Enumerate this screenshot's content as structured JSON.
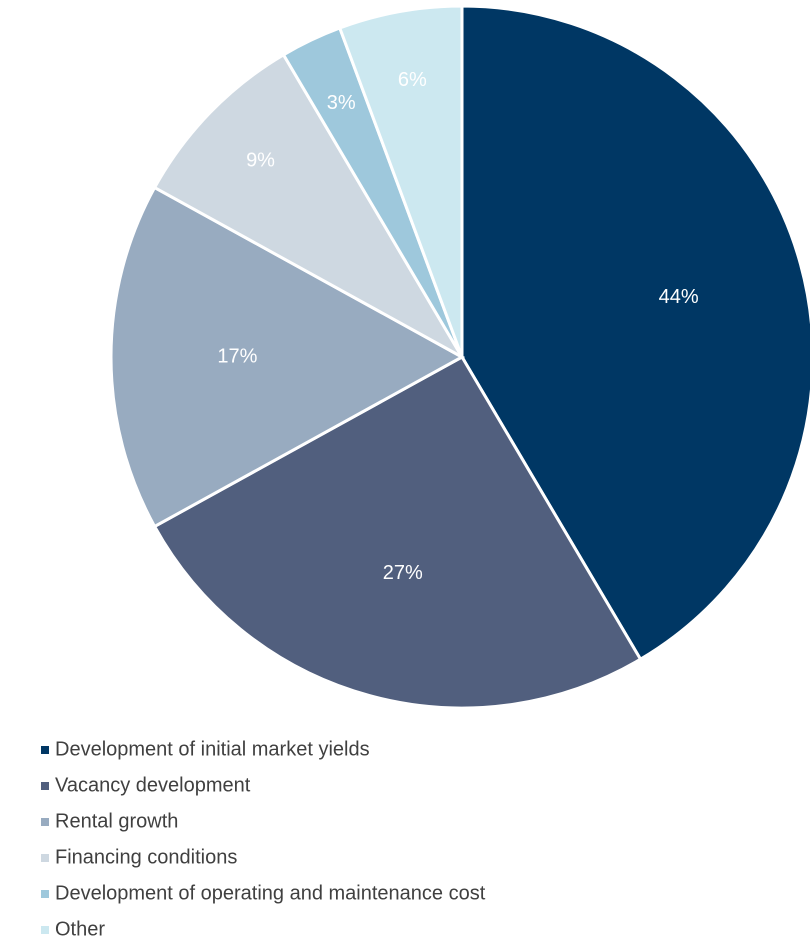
{
  "chart_data": {
    "type": "pie",
    "categories": [
      "Development of initial market yields",
      "Vacancy development",
      "Rental growth",
      "Financing conditions",
      "Development of operating and maintenance cost",
      "Other"
    ],
    "values": [
      44,
      27,
      17,
      9,
      3,
      6
    ],
    "value_labels": [
      "44%",
      "27%",
      "17%",
      "9%",
      "3%",
      "6%"
    ],
    "colors": [
      "#003764",
      "#515f7e",
      "#98abc0",
      "#ced8e1",
      "#9ec8dc",
      "#cce8f0"
    ],
    "legend": "bottom-left"
  }
}
